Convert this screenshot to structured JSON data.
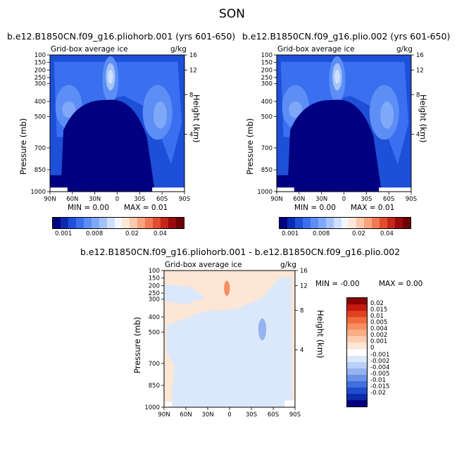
{
  "figure_title": "SON",
  "panels": [
    {
      "run_title": "b.e12.B1850CN.f09_g16.pliohorb.001 (yrs 601-650)",
      "variable": "Grid-box average ice",
      "units": "g/kg",
      "min_label": "MIN =",
      "min_value": "0.00",
      "max_label": "MAX =",
      "max_value": "0.01"
    },
    {
      "run_title": "b.e12.B1850CN.f09_g16.plio.002 (yrs 601-650)",
      "variable": "Grid-box average ice",
      "units": "g/kg",
      "min_label": "MIN =",
      "min_value": "0.00",
      "max_label": "MAX =",
      "max_value": "0.01"
    }
  ],
  "diff_panel": {
    "title": "b.e12.B1850CN.f09_g16.pliohorb.001 - b.e12.B1850CN.f09_g16.plio.002",
    "variable": "Grid-box average ice",
    "units": "g/kg",
    "min_label": "MIN =",
    "min_value": "-0.00",
    "max_label": "MAX =",
    "max_value": "0.00"
  },
  "axes": {
    "y_label": "Pressure (mb)",
    "y2_label": "Height (km)",
    "x_ticks": [
      "90N",
      "60N",
      "30N",
      "0",
      "30S",
      "60S",
      "90S"
    ],
    "p_ticks": [
      "100",
      "150",
      "200",
      "250",
      "300",
      "400",
      "500",
      "700",
      "850",
      "1000"
    ],
    "h_ticks": [
      "16",
      "12",
      "8",
      "4"
    ]
  },
  "colors": {
    "abs_colorbar": [
      "#000080",
      "#0a2bb0",
      "#1d4fd8",
      "#3a6ff0",
      "#5c8ef5",
      "#7fa8f8",
      "#a5c3fb",
      "#cfe0fd",
      "#f3f6ff",
      "#fde7d7",
      "#fbc8ab",
      "#f8a47f",
      "#f27a55",
      "#e24d2f",
      "#c42617",
      "#9b0b0b",
      "#6e0000"
    ],
    "diff_colorbar": [
      "#8b0000",
      "#c41a10",
      "#e0411f",
      "#f06a3e",
      "#f78f61",
      "#faae85",
      "#fccdae",
      "#fde6d4",
      "#ffffff",
      "#dbe8fb",
      "#b9cff6",
      "#94b3ef",
      "#6b92e8",
      "#416fdf",
      "#1f4ccf",
      "#0c2aa8",
      "#000080"
    ],
    "plot_fills": [
      "#000080",
      "#0a2bb0",
      "#1d4fd8",
      "#3a6ff0",
      "#5c8ef5",
      "#7fa8f8",
      "#a5c3fb",
      "#cfe0fd"
    ],
    "diff_fills": {
      "base": "#fde6d4",
      "neg1": "#dbe8fb",
      "neg2": "#94b3ef",
      "pos1": "#f78f61"
    }
  },
  "chart_data": [
    {
      "type": "contour",
      "panel": "b.e12.B1850CN.f09_g16.pliohorb.001 (yrs 601-650)",
      "x_range": [
        "90N",
        "90S"
      ],
      "y_range_mb": [
        1000,
        100
      ],
      "min": 0.0,
      "max": 0.01,
      "colorbar_labels": [
        "0.001",
        "0.008",
        "0.02",
        "0.04"
      ]
    },
    {
      "type": "contour",
      "panel": "b.e12.B1850CN.f09_g16.plio.002 (yrs 601-650)",
      "x_range": [
        "90N",
        "90S"
      ],
      "y_range_mb": [
        1000,
        100
      ],
      "min": 0.0,
      "max": 0.01,
      "colorbar_labels": [
        "0.001",
        "0.008",
        "0.02",
        "0.04"
      ]
    },
    {
      "type": "contour",
      "panel": "difference",
      "x_range": [
        "90N",
        "90S"
      ],
      "y_range_mb": [
        1000,
        100
      ],
      "min": -0.0,
      "max": 0.0,
      "colorbar_labels": [
        "0.02",
        "0.015",
        "0.01",
        "0.005",
        "0.004",
        "0.002",
        "0.001",
        "0",
        "-0.001",
        "-0.002",
        "-0.004",
        "-0.005",
        "-0.01",
        "-0.015",
        "-0.02"
      ]
    }
  ]
}
